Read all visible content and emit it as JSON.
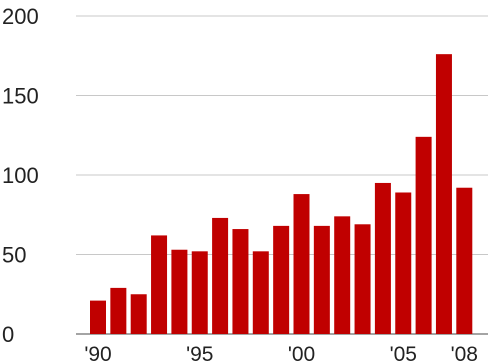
{
  "chart_data": {
    "type": "bar",
    "title": "",
    "xlabel": "",
    "ylabel": "",
    "categories": [
      "1990",
      "1991",
      "1992",
      "1993",
      "1994",
      "1995",
      "1996",
      "1997",
      "1998",
      "1999",
      "2000",
      "2001",
      "2002",
      "2003",
      "2004",
      "2005",
      "2006",
      "2007",
      "2008"
    ],
    "values": [
      21,
      29,
      25,
      62,
      53,
      52,
      73,
      66,
      52,
      68,
      88,
      68,
      74,
      69,
      95,
      89,
      124,
      176,
      92
    ],
    "ylim": [
      0,
      200
    ],
    "yticks": [
      "0",
      "50",
      "100",
      "150",
      "200"
    ],
    "xtick_labels": [
      {
        "category": "1990",
        "label": "'90"
      },
      {
        "category": "1995",
        "label": "'95"
      },
      {
        "category": "2000",
        "label": "'00"
      },
      {
        "category": "2005",
        "label": "'05"
      },
      {
        "category": "2008",
        "label": "'08"
      }
    ],
    "grid": true,
    "colors": {
      "bar": "#c00000",
      "grid": "#c8c8c8",
      "axis": "#4a4a4a"
    }
  }
}
